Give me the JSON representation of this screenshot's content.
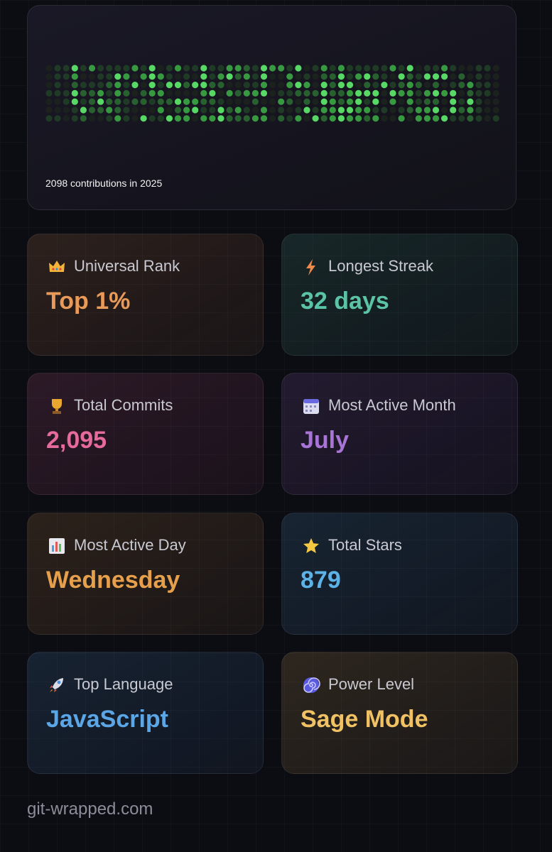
{
  "contributions_caption": "2098 contributions in 2025",
  "stats": [
    {
      "label": "Universal Rank",
      "value": "Top 1%",
      "color": "#e99a58"
    },
    {
      "label": "Longest Streak",
      "value": "32 days",
      "color": "#5cc4a6"
    },
    {
      "label": "Total Commits",
      "value": "2,095",
      "color": "#e66a9c"
    },
    {
      "label": "Most Active Month",
      "value": "July",
      "color": "#a874d6"
    },
    {
      "label": "Most Active Day",
      "value": "Wednesday",
      "color": "#e6a04c"
    },
    {
      "label": "Total Stars",
      "value": "879",
      "color": "#5cb2e6"
    },
    {
      "label": "Top Language",
      "value": "JavaScript",
      "color": "#5aa6e6"
    },
    {
      "label": "Power Level",
      "value": "Sage Mode",
      "color": "#f0c264"
    }
  ],
  "footer": "git-wrapped.com"
}
